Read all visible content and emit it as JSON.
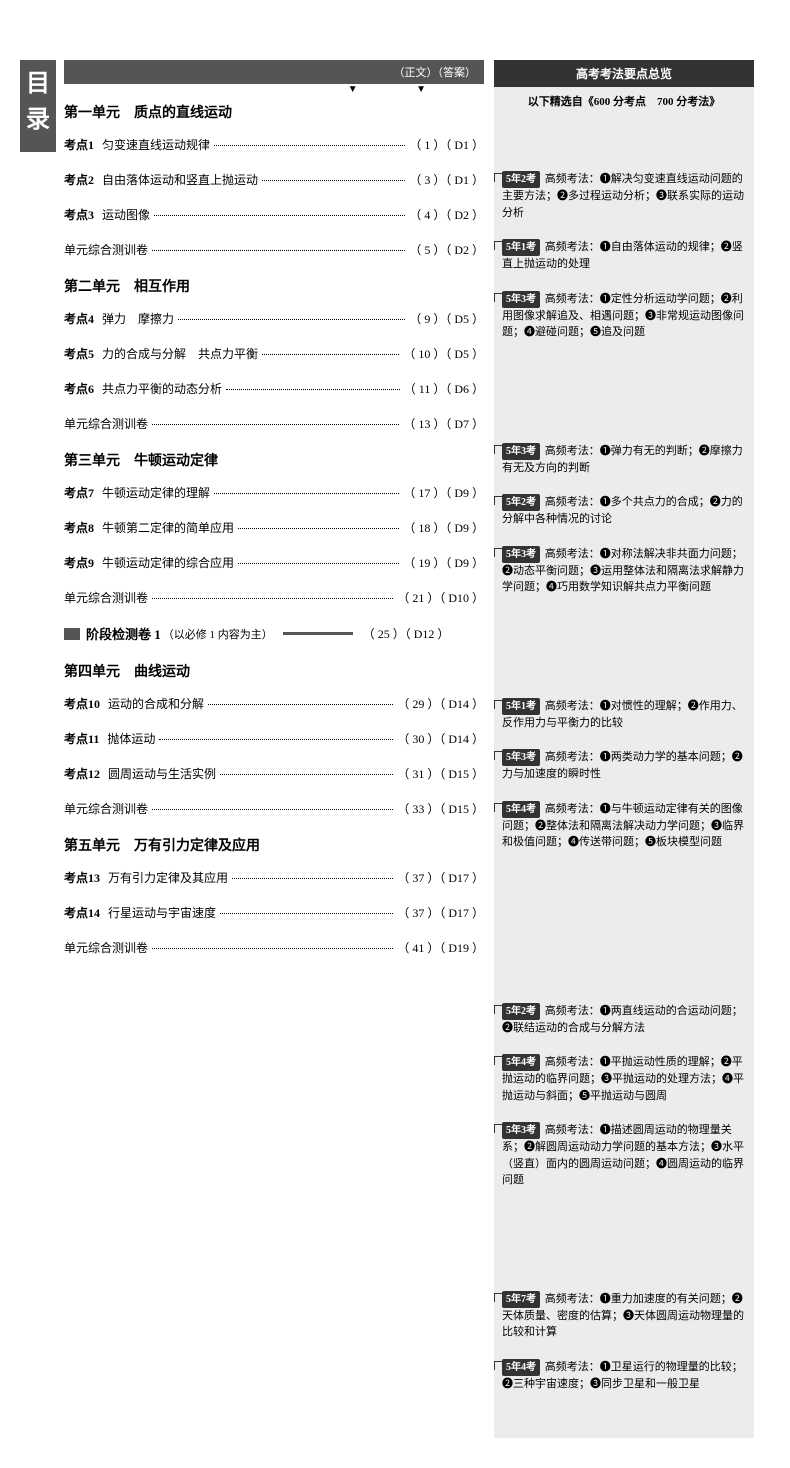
{
  "tab_char1": "目",
  "tab_char2": "录",
  "header_right": "（正文）（答案）",
  "sidebar_title": "高考考法要点总览",
  "sidebar_subtitle": "以下精选自《600 分考点　700 分考法》",
  "units": [
    {
      "title": "第一单元　质点的直线运动",
      "rows": [
        {
          "label": "考点1",
          "text": "匀变速直线运动规律",
          "p1": "1",
          "p2": "D1",
          "notes": {
            "badge": "5年2考",
            "txt": "高频考法：❶解决匀变速直线运动问题的主要方法；❷多过程运动分析；❸联系实际的运动分析"
          }
        },
        {
          "label": "考点2",
          "text": "自由落体运动和竖直上抛运动",
          "p1": "3",
          "p2": "D1",
          "notes": {
            "badge": "5年1考",
            "txt": "高频考法：❶自由落体运动的规律；❷竖直上抛运动的处理"
          }
        },
        {
          "label": "考点3",
          "text": "运动图像",
          "p1": "4",
          "p2": "D2",
          "notes": {
            "badge": "5年3考",
            "txt": "高频考法：❶定性分析运动学问题；❷利用图像求解追及、相遇问题；❸非常规运动图像问题；❹避碰问题；❺追及问题"
          }
        },
        {
          "label": "",
          "text": "单元综合测训卷",
          "p1": "5",
          "p2": "D2",
          "notes": null
        }
      ]
    },
    {
      "title": "第二单元　相互作用",
      "rows": [
        {
          "label": "考点4",
          "text": "弹力　摩擦力",
          "p1": "9",
          "p2": "D5",
          "notes": {
            "badge": "5年3考",
            "txt": "高频考法：❶弹力有无的判断；❷摩擦力有无及方向的判断"
          }
        },
        {
          "label": "考点5",
          "text": "力的合成与分解　共点力平衡",
          "p1": "10",
          "p2": "D5",
          "notes": {
            "badge": "5年2考",
            "txt": "高频考法：❶多个共点力的合成；❷力的分解中各种情况的讨论"
          }
        },
        {
          "label": "考点6",
          "text": "共点力平衡的动态分析",
          "p1": "11",
          "p2": "D6",
          "notes": {
            "badge": "5年3考",
            "txt": "高频考法：❶对称法解决非共面力问题；❷动态平衡问题；❸运用整体法和隔离法求解静力学问题；❹巧用数学知识解共点力平衡问题"
          }
        },
        {
          "label": "",
          "text": "单元综合测训卷",
          "p1": "13",
          "p2": "D7",
          "notes": null
        }
      ]
    },
    {
      "title": "第三单元　牛顿运动定律",
      "rows": [
        {
          "label": "考点7",
          "text": "牛顿运动定律的理解",
          "p1": "17",
          "p2": "D9",
          "notes": {
            "badge": "5年1考",
            "txt": "高频考法：❶对惯性的理解；❷作用力、反作用力与平衡力的比较"
          }
        },
        {
          "label": "考点8",
          "text": "牛顿第二定律的简单应用",
          "p1": "18",
          "p2": "D9",
          "notes": {
            "badge": "5年3考",
            "txt": "高频考法：❶两类动力学的基本问题；❷力与加速度的瞬时性"
          }
        },
        {
          "label": "考点9",
          "text": "牛顿运动定律的综合应用",
          "p1": "19",
          "p2": "D9",
          "notes": {
            "badge": "5年4考",
            "txt": "高频考法：❶与牛顿运动定律有关的图像问题；❷整体法和隔离法解决动力学问题；❸临界和极值问题；❹传送带问题；❺板块模型问题"
          }
        },
        {
          "label": "",
          "text": "单元综合测训卷",
          "p1": "21",
          "p2": "D10",
          "notes": null
        }
      ],
      "stage": {
        "title": "阶段检测卷 1",
        "sub": "（以必修 1 内容为主）",
        "p1": "25",
        "p2": "D12"
      }
    },
    {
      "title": "第四单元　曲线运动",
      "rows": [
        {
          "label": "考点10",
          "text": "运动的合成和分解",
          "p1": "29",
          "p2": "D14",
          "notes": {
            "badge": "5年2考",
            "txt": "高频考法：❶两直线运动的合运动问题；❷联结运动的合成与分解方法"
          }
        },
        {
          "label": "考点11",
          "text": "抛体运动",
          "p1": "30",
          "p2": "D14",
          "notes": {
            "badge": "5年4考",
            "txt": "高频考法：❶平抛运动性质的理解；❷平抛运动的临界问题；❸平抛运动的处理方法；❹平抛运动与斜面；❺平抛运动与圆周"
          }
        },
        {
          "label": "考点12",
          "text": "圆周运动与生活实例",
          "p1": "31",
          "p2": "D15",
          "notes": {
            "badge": "5年3考",
            "txt": "高频考法：❶描述圆周运动的物理量关系；❷解圆周运动动力学问题的基本方法；❸水平（竖直）面内的圆周运动问题；❹圆周运动的临界问题"
          }
        },
        {
          "label": "",
          "text": "单元综合测训卷",
          "p1": "33",
          "p2": "D15",
          "notes": null
        }
      ]
    },
    {
      "title": "第五单元　万有引力定律及应用",
      "rows": [
        {
          "label": "考点13",
          "text": "万有引力定律及其应用",
          "p1": "37",
          "p2": "D17",
          "notes": {
            "badge": "5年7考",
            "txt": "高频考法：❶重力加速度的有关问题；❷天体质量、密度的估算；❸天体圆周运动物理量的比较和计算"
          }
        },
        {
          "label": "考点14",
          "text": "行星运动与宇宙速度",
          "p1": "37",
          "p2": "D17",
          "notes": {
            "badge": "5年4考",
            "txt": "高频考法：❶卫星运行的物理量的比较；❷三种宇宙速度；❸同步卫星和一般卫星"
          }
        },
        {
          "label": "",
          "text": "单元综合测训卷",
          "p1": "41",
          "p2": "D19",
          "notes": null
        }
      ]
    }
  ]
}
